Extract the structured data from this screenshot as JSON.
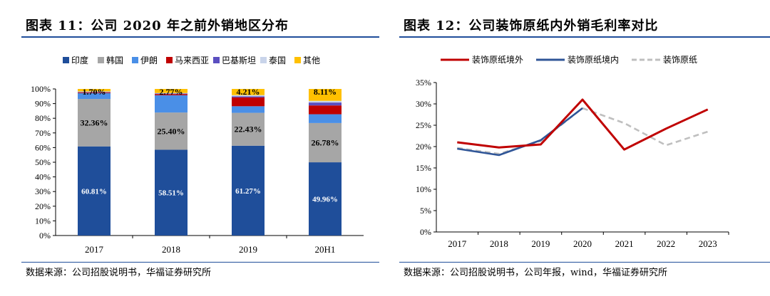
{
  "left": {
    "title": "图表 11：公司 2020 年之前外销地区分布",
    "source": "数据来源：公司招股说明书，华福证券研究所"
  },
  "right": {
    "title": "图表 12：公司装饰原纸内外销毛利率对比",
    "source": "数据来源：公司招股说明书，公司年报，wind，华福证券研究所"
  },
  "chart_data": [
    {
      "type": "bar",
      "stacked": true,
      "categories": [
        "2017",
        "2018",
        "2019",
        "20H1"
      ],
      "series": [
        {
          "name": "印度",
          "color": "#1f4e9a",
          "values": [
            60.81,
            58.51,
            61.27,
            49.96
          ],
          "labels": [
            "60.81%",
            "58.51%",
            "61.27%",
            "49.96%"
          ]
        },
        {
          "name": "韩国",
          "color": "#a6a6a6",
          "values": [
            32.36,
            25.4,
            22.43,
            26.78
          ],
          "labels": [
            "32.36%",
            "25.40%",
            "22.43%",
            "26.78%"
          ]
        },
        {
          "name": "伊朗",
          "color": "#4a8fe7",
          "values": [
            4.0,
            11.8,
            4.5,
            6.0
          ],
          "labels": [
            "",
            "",
            "",
            ""
          ]
        },
        {
          "name": "马来西亚",
          "color": "#c00000",
          "values": [
            0.5,
            0.8,
            6.0,
            6.0
          ],
          "labels": [
            "",
            "",
            "",
            ""
          ]
        },
        {
          "name": "巴基斯坦",
          "color": "#5b4fc0",
          "values": [
            0.3,
            0.4,
            0.8,
            2.0
          ],
          "labels": [
            "",
            "",
            "",
            ""
          ]
        },
        {
          "name": "泰国",
          "color": "#c9d4ea",
          "values": [
            0.33,
            0.32,
            0.8,
            1.15
          ],
          "labels": [
            "",
            "",
            "",
            ""
          ]
        },
        {
          "name": "其他",
          "color": "#ffc000",
          "values": [
            1.7,
            2.77,
            4.21,
            8.11
          ],
          "labels": [
            "1.70%",
            "2.77%",
            "4.21%",
            "8.11%"
          ]
        }
      ],
      "ylim": [
        0,
        100
      ],
      "yticks": [
        0,
        10,
        20,
        30,
        40,
        50,
        60,
        70,
        80,
        90,
        100
      ],
      "ytick_labels": [
        "0%",
        "10%",
        "20%",
        "30%",
        "40%",
        "50%",
        "60%",
        "70%",
        "80%",
        "90%",
        "100%"
      ],
      "legend": "top"
    },
    {
      "type": "line",
      "x": [
        "2017",
        "2018",
        "2019",
        "2020",
        "2021",
        "2022",
        "2023"
      ],
      "series": [
        {
          "name": "装饰原纸境外",
          "color": "#c00000",
          "style": "solid",
          "values": [
            21.0,
            19.8,
            20.5,
            31.0,
            19.3,
            24.2,
            28.7
          ]
        },
        {
          "name": "装饰原纸境内",
          "color": "#2f5597",
          "style": "solid",
          "values": [
            19.5,
            18.0,
            21.5,
            29.0,
            null,
            null,
            null
          ]
        },
        {
          "name": "装饰原纸",
          "color": "#bfbfbf",
          "style": "dashed",
          "values": [
            19.7,
            18.3,
            21.3,
            29.0,
            25.5,
            20.3,
            23.5
          ]
        }
      ],
      "ylim": [
        0,
        35
      ],
      "yticks": [
        0,
        5,
        10,
        15,
        20,
        25,
        30,
        35
      ],
      "ytick_labels": [
        "0%",
        "5%",
        "10%",
        "15%",
        "20%",
        "25%",
        "30%",
        "35%"
      ],
      "legend": "top"
    }
  ]
}
